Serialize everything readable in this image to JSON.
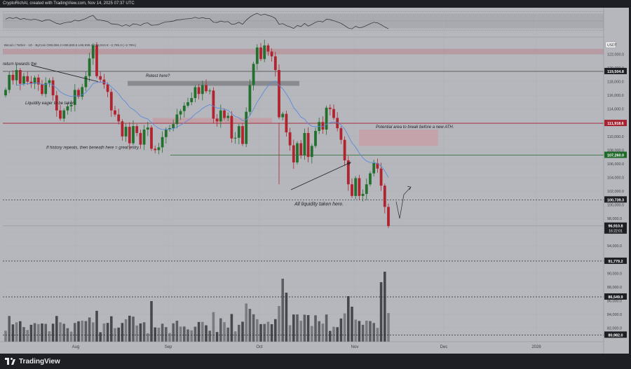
{
  "topbar": {
    "credit": "CryptoRichAl, created with TradingView.com, Nov 14, 2025 07:37 UTC"
  },
  "legend": {
    "text": "Bitcoin / Tether · 1D · ByCoin   O99,696.2  H99,869.6  L95,938.4  C96,910.8  −2,785.3 (−2.79%)"
  },
  "symbol_badge": "USDT",
  "footer": {
    "brand": "TradingView"
  },
  "colors": {
    "up": "#23702e",
    "down": "#b0242f",
    "ma": "#5b8bdc",
    "bg": "#b6b7bc",
    "volume": "#54555a"
  },
  "chart_data": {
    "type": "candlestick",
    "ylim": [
      80000,
      124000
    ],
    "y_ticks": [
      82000,
      84000,
      86000,
      88000,
      90000,
      92000,
      94000,
      96000,
      98000,
      100000,
      102000,
      104000,
      106000,
      108000,
      110000,
      112000,
      114000,
      116000,
      118000,
      120000,
      122000
    ],
    "x_labels": [
      {
        "label": "Aug",
        "x": 108
      },
      {
        "label": "Sep",
        "x": 240
      },
      {
        "label": "Oct",
        "x": 370
      },
      {
        "label": "Nov",
        "x": 506
      },
      {
        "label": "Dec",
        "x": 633
      },
      {
        "label": "2026",
        "x": 765
      }
    ],
    "rsi_ticks": [
      75.0,
      50.0,
      25.0
    ],
    "price_labels": [
      {
        "value": 119504.8,
        "text": "119,504.8",
        "style": "black"
      },
      {
        "value": 111918.6,
        "text": "111,918.6",
        "style": "red"
      },
      {
        "value": 107260.0,
        "text": "107,260.0",
        "style": "green"
      },
      {
        "value": 100739.3,
        "text": "100,739.3",
        "style": "black"
      },
      {
        "value": 96910.8,
        "text": "96,910.8",
        "style": "black",
        "sub": "16:22:01"
      },
      {
        "value": 91779.2,
        "text": "91,779.2",
        "style": "black"
      },
      {
        "value": 86549.9,
        "text": "86,549.9",
        "style": "black"
      },
      {
        "value": 80982.0,
        "text": "80,982.0",
        "style": "black"
      }
    ],
    "annotations": [
      {
        "text": "return towards the",
        "value": 120400
      },
      {
        "text": "Retest here?",
        "value": 118700
      },
      {
        "text": "Liquidity eager to be taken.",
        "value": 114700
      },
      {
        "text": "Potential area to break before a new ATH.",
        "value": 111200
      },
      {
        "text": "If history repeats, then beneath here = great entry.",
        "value": 108200
      },
      {
        "text": "All liquidity taken here.",
        "value": 99900
      }
    ],
    "candles_close": [
      116800,
      119000,
      118200,
      119700,
      117700,
      118800,
      118000,
      117700,
      118600,
      117600,
      116200,
      117800,
      118200,
      116000,
      113800,
      112600,
      113800,
      114400,
      114600,
      116800,
      115800,
      117200,
      118800,
      121400,
      123300,
      118800,
      118300,
      117600,
      116500,
      113800,
      113200,
      112200,
      110000,
      111400,
      109000,
      111500,
      110500,
      108800,
      111000,
      111300,
      108200,
      108000,
      108400,
      109900,
      111000,
      111200,
      111800,
      113200,
      113700,
      114500,
      115000,
      115600,
      117200,
      116200,
      117500,
      116600,
      116700,
      112600,
      112200,
      113800,
      112700,
      113000,
      109700,
      109800,
      111500,
      108900,
      113600,
      117500,
      120600,
      123000,
      121300,
      123300,
      122400,
      121700,
      119700,
      112800,
      113300,
      110600,
      108700,
      106200,
      109000,
      107200,
      110500,
      107000,
      108600,
      110800,
      112100,
      111000,
      114200,
      114000,
      112700,
      111200,
      109500,
      106500,
      103000,
      101300,
      103900,
      101300,
      101600,
      103000,
      104600,
      106100,
      105300,
      102800,
      99700,
      96910
    ]
  }
}
